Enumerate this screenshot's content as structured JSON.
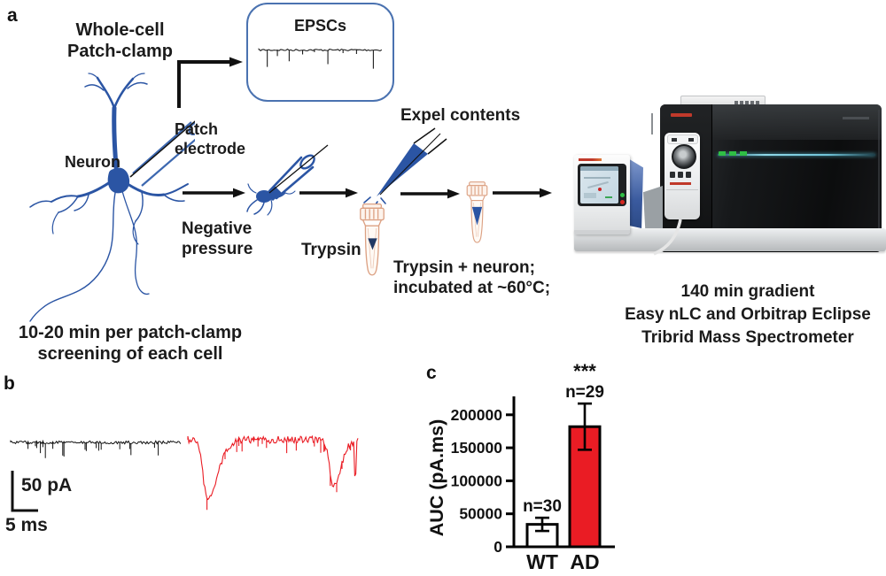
{
  "figure": {
    "panel_a": {
      "label": "a",
      "method_title": "Whole-cell\nPatch-clamp",
      "epsc_box_title": "EPSCs",
      "neuron_label": "Neuron",
      "patch_electrode_label": "Patch\nelectrode",
      "negative_pressure_label": "Negative\npressure",
      "trypsin_label": "Trypsin",
      "expel_contents_label": "Expel contents",
      "incubation_label": "Trypsin + neuron;\nincubated at ~60°C;",
      "patch_timing_note": "10-20 min per patch-clamp\nscreening of each cell",
      "ms_caption": "140 min gradient\nEasy nLC and Orbitrap Eclipse\nTribrid Mass Spectrometer"
    },
    "panel_b": {
      "label": "b",
      "scale_bar_vertical": "50 pA",
      "scale_bar_horizontal": "5 ms"
    },
    "panel_c": {
      "label": "c"
    }
  },
  "colors": {
    "neuron_blue": "#2b55a4",
    "electrode_blue": "#3d68b0",
    "epsc_box_border": "#4a72b0",
    "trace_black": "#111111",
    "trace_red": "#ea1c24",
    "bar_red": "#ea1c24",
    "tube_outline": "#dca183",
    "teal_accent": "#6fc3d8"
  },
  "chart_data": {
    "type": "bar",
    "title": "",
    "xlabel": "",
    "ylabel": "AUC (pA.ms)",
    "categories": [
      "WT",
      "AD"
    ],
    "values": [
      34000,
      182000
    ],
    "errors": [
      10000,
      35000
    ],
    "bar_colors": [
      "#ffffff",
      "#ea1c24"
    ],
    "bar_border_color": "#000000",
    "yticks": [
      0,
      50000,
      100000,
      150000,
      200000
    ],
    "ylim": [
      0,
      230000
    ],
    "n_labels": [
      "n=30",
      "n=29"
    ],
    "significance": {
      "category": "AD",
      "text": "***"
    },
    "legend": false,
    "grid": false
  }
}
